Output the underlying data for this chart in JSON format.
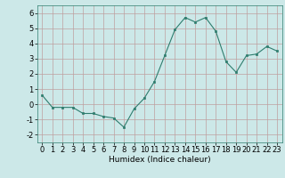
{
  "x": [
    0,
    1,
    2,
    3,
    4,
    5,
    6,
    7,
    8,
    9,
    10,
    11,
    12,
    13,
    14,
    15,
    16,
    17,
    18,
    19,
    20,
    21,
    22,
    23
  ],
  "y": [
    0.6,
    -0.2,
    -0.2,
    -0.2,
    -0.6,
    -0.6,
    -0.8,
    -0.9,
    -1.5,
    -0.3,
    0.4,
    1.5,
    3.2,
    4.9,
    5.7,
    5.4,
    5.7,
    4.8,
    2.8,
    2.1,
    3.2,
    3.3,
    3.8,
    3.5
  ],
  "line_color": "#2e7d6e",
  "marker": "s",
  "marker_size": 2,
  "bg_color": "#cce8e8",
  "grid_color": "#bf9f9f",
  "xlabel": "Humidex (Indice chaleur)",
  "ylim": [
    -2.5,
    6.5
  ],
  "xlim": [
    -0.5,
    23.5
  ],
  "yticks": [
    -2,
    -1,
    0,
    1,
    2,
    3,
    4,
    5,
    6
  ],
  "xticks": [
    0,
    1,
    2,
    3,
    4,
    5,
    6,
    7,
    8,
    9,
    10,
    11,
    12,
    13,
    14,
    15,
    16,
    17,
    18,
    19,
    20,
    21,
    22,
    23
  ],
  "label_fontsize": 6.5,
  "tick_fontsize": 6
}
